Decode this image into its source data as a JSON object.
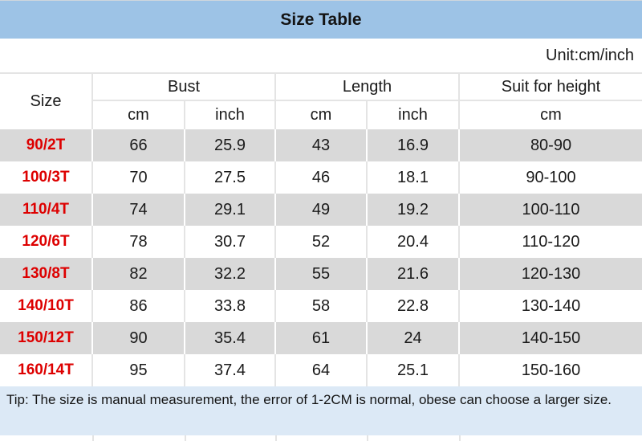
{
  "title": "Size Table",
  "unit_note": "Unit:cm/inch",
  "header": {
    "size": "Size",
    "bust": "Bust",
    "length": "Length",
    "suit_for_height": "Suit for height",
    "cm": "cm",
    "inch": "inch"
  },
  "rows": [
    {
      "size": "90/2T",
      "bust_cm": "66",
      "bust_inch": "25.9",
      "length_cm": "43",
      "length_inch": "16.9",
      "height_cm": "80-90"
    },
    {
      "size": "100/3T",
      "bust_cm": "70",
      "bust_inch": "27.5",
      "length_cm": "46",
      "length_inch": "18.1",
      "height_cm": "90-100"
    },
    {
      "size": "110/4T",
      "bust_cm": "74",
      "bust_inch": "29.1",
      "length_cm": "49",
      "length_inch": "19.2",
      "height_cm": "100-110"
    },
    {
      "size": "120/6T",
      "bust_cm": "78",
      "bust_inch": "30.7",
      "length_cm": "52",
      "length_inch": "20.4",
      "height_cm": "110-120"
    },
    {
      "size": "130/8T",
      "bust_cm": "82",
      "bust_inch": "32.2",
      "length_cm": "55",
      "length_inch": "21.6",
      "height_cm": "120-130"
    },
    {
      "size": "140/10T",
      "bust_cm": "86",
      "bust_inch": "33.8",
      "length_cm": "58",
      "length_inch": "22.8",
      "height_cm": "130-140"
    },
    {
      "size": "150/12T",
      "bust_cm": "90",
      "bust_inch": "35.4",
      "length_cm": "61",
      "length_inch": "24",
      "height_cm": "140-150"
    },
    {
      "size": "160/14T",
      "bust_cm": "95",
      "bust_inch": "37.4",
      "length_cm": "64",
      "length_inch": "25.1",
      "height_cm": "150-160"
    }
  ],
  "tip": "Tip: The size is manual measurement, the error of 1-2CM is normal, obese can choose a larger size.",
  "colors": {
    "title_bg": "#9dc3e6",
    "tip_bg": "#dce9f6",
    "alt_row_bg": "#d9d9d9",
    "size_label_red": "#dd0000"
  },
  "chart_data": {
    "type": "table",
    "title": "Size Table",
    "unit": "cm/inch",
    "columns": [
      "Size",
      "Bust cm",
      "Bust inch",
      "Length cm",
      "Length inch",
      "Suit for height cm"
    ],
    "rows": [
      [
        "90/2T",
        66,
        25.9,
        43,
        16.9,
        "80-90"
      ],
      [
        "100/3T",
        70,
        27.5,
        46,
        18.1,
        "90-100"
      ],
      [
        "110/4T",
        74,
        29.1,
        49,
        19.2,
        "100-110"
      ],
      [
        "120/6T",
        78,
        30.7,
        52,
        20.4,
        "110-120"
      ],
      [
        "130/8T",
        82,
        32.2,
        55,
        21.6,
        "120-130"
      ],
      [
        "140/10T",
        86,
        33.8,
        58,
        22.8,
        "130-140"
      ],
      [
        "150/12T",
        90,
        35.4,
        61,
        24,
        "140-150"
      ],
      [
        "160/14T",
        95,
        37.4,
        64,
        25.1,
        "150-160"
      ]
    ],
    "layout": {
      "alternating_row_fill": true,
      "size_labels_color": "red",
      "note": "Tip row at bottom"
    }
  }
}
